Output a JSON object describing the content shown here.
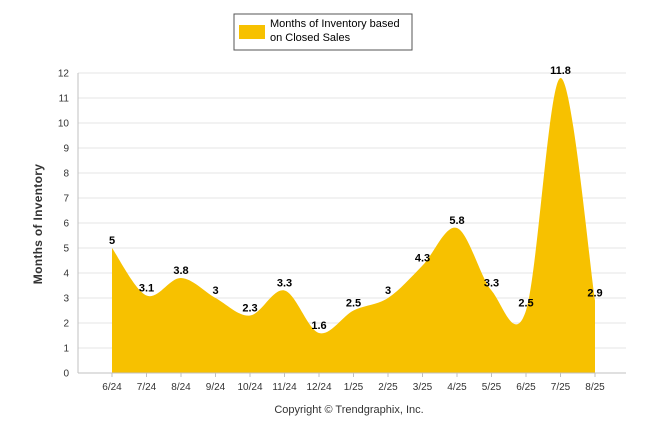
{
  "chart_data": {
    "type": "area",
    "categories": [
      "6/24",
      "7/24",
      "8/24",
      "9/24",
      "10/24",
      "11/24",
      "12/24",
      "1/25",
      "2/25",
      "3/25",
      "4/25",
      "5/25",
      "6/25",
      "7/25",
      "8/25"
    ],
    "series": [
      {
        "name": "Months of Inventory based on Closed Sales",
        "values": [
          5,
          3.1,
          3.8,
          3,
          2.3,
          3.3,
          1.6,
          2.5,
          3,
          4.3,
          5.8,
          3.3,
          2.5,
          11.8,
          2.9
        ],
        "color": "#f7c100"
      }
    ],
    "legend_lines": [
      "Months of Inventory based",
      "on Closed Sales"
    ],
    "ylabel": "Months of Inventory",
    "xlabel": "",
    "ylim": [
      0,
      12
    ],
    "yticks": [
      "0",
      "1",
      "2",
      "3",
      "4",
      "5",
      "6",
      "7",
      "8",
      "9",
      "10",
      "11",
      "12"
    ],
    "grid": true,
    "legend_position": "top-center",
    "smooth": true
  },
  "footer": {
    "copyright": "Copyright © Trendgraphix, Inc."
  },
  "colors": {
    "fill": "#f7c100",
    "grid": "#e6e6e6",
    "axis": "#c0c0c0"
  }
}
